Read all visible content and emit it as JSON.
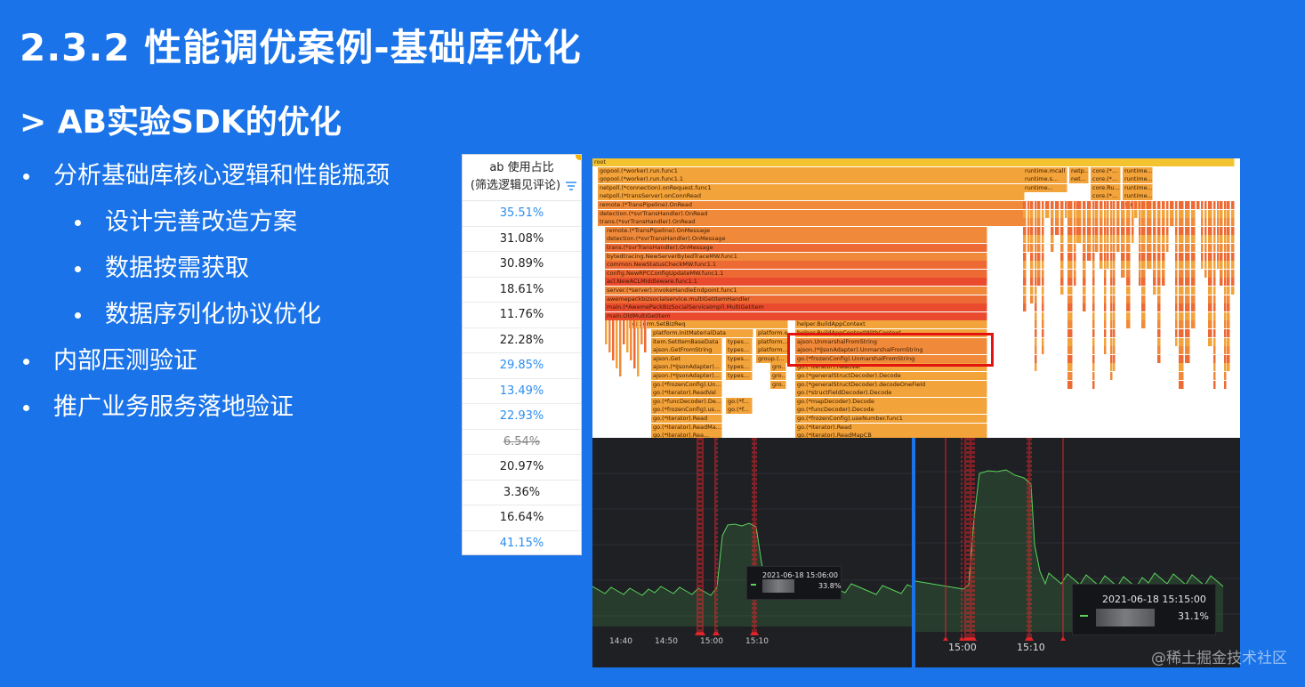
{
  "slide": {
    "title": "2.3.2 性能调优案例-基础库优化",
    "subtitle": "> AB实验SDK的优化",
    "bullets": [
      {
        "level": 1,
        "text": "分析基础库核心逻辑和性能瓶颈"
      },
      {
        "level": 2,
        "text": "设计完善改造方案"
      },
      {
        "level": 2,
        "text": "数据按需获取"
      },
      {
        "level": 2,
        "text": "数据序列化协议优化"
      },
      {
        "level": 1,
        "text": "内部压测验证"
      },
      {
        "level": 1,
        "text": "推广业务服务落地验证"
      }
    ]
  },
  "ab_table": {
    "header_line1": "ab 使用占比",
    "header_line2": "(筛选逻辑见评论)",
    "rows": [
      {
        "value": "35.51%",
        "style": "blue"
      },
      {
        "value": "31.08%",
        "style": "normal"
      },
      {
        "value": "30.89%",
        "style": "normal"
      },
      {
        "value": "18.61%",
        "style": "normal"
      },
      {
        "value": "11.76%",
        "style": "normal"
      },
      {
        "value": "22.28%",
        "style": "normal"
      },
      {
        "value": "29.85%",
        "style": "blue"
      },
      {
        "value": "13.49%",
        "style": "blue"
      },
      {
        "value": "22.93%",
        "style": "blue"
      },
      {
        "value": "6.54%",
        "style": "strike"
      },
      {
        "value": "20.97%",
        "style": "normal"
      },
      {
        "value": "3.36%",
        "style": "normal"
      },
      {
        "value": "16.64%",
        "style": "normal"
      },
      {
        "value": "41.15%",
        "style": "blue"
      }
    ]
  },
  "flame_graph": {
    "frames": [
      "root",
      "gopool.(*worker).run.func1",
      "gopool.(*worker).run.func1.1",
      "netpoll.(*connection).onRequest.func1",
      "netpoll.(*transServer).onConnRead",
      "remote.(*TransPipeline).OnRead",
      "detection.(*svrTransHandler).OnRead",
      "trans.(*svrTransHandler).OnRead",
      "remote.(*TransPipeline).OnMessage",
      "detection.(*svrTransHandler).OnMessage",
      "trans.(*svrTransHandler).OnMessage",
      "bytedtracing.NewServerBytedTraceMW.func1",
      "common.NewStatusCheckMW.func1.1",
      "config.NewRPCConfigUpdateMW.func1.1",
      "acl.NewACLMiddleware.func1.1",
      "server.(*server).invokeHandleEndpoint.func1",
      "awemepackbizsocialservice.multiGetItemHandler",
      "main.(*AwemePackBizSocialServiceImpl).MultiGetItem",
      "main.OldMultiGetItem",
      "platform.SetBizReq",
      "platform.InitMaterialData",
      "item.SetItemBaseData",
      "ajson.GetFromString",
      "ajson.Get",
      "ajson.(*IJsonAdapter)...",
      "ajson.(*IJsonAdapter)...",
      "go.(*frozenConfig).Un...",
      "go.(*Iterator).ReadVal",
      "go.(*funcDecoder).De...",
      "go.(*frozenConfig).us...",
      "go.(*Iterator).Read",
      "go.(*Iterator).ReadMa...",
      "go.(*Iterator).Rea...",
      "helper.BuildAppContext",
      "helper.BuildAppContextWithContext",
      "ajson.UnmarshalFromString",
      "ajson.(*IJsonAdapter).UnmarshalFromString",
      "go.(*frozenConfig).UnmarshalFromString",
      "go.(*Iterator).ReadVal",
      "go.(*generalStructDecoder).Decode",
      "go.(*generalStructDecoder).decodeOneField",
      "go.(*structFieldDecoder).Decode",
      "go.(*mapDecoder).Decode",
      "go.(*funcDecoder).Decode",
      "go.(*frozenConfig).useNumber.func1",
      "go.(*Iterator).Read",
      "go.(*Iterator).ReadMapCB",
      "runtime.mcall",
      "runtime.s...",
      "runtime...",
      "netp...",
      "net...",
      "core.(*...",
      "core.Ru...",
      "core.(*...",
      "runtime...",
      "runti...",
      "types...",
      "platform...",
      "group.(...",
      "gro...",
      "go.(*f...",
      "platform.o..."
    ]
  },
  "monitor_left": {
    "x_ticks": [
      "14:40",
      "14:50",
      "15:00",
      "15:10"
    ],
    "tooltip_date": "2021-06-18 15:06:00",
    "tooltip_value": "33.8%",
    "series_color": "#5bd35b",
    "event_line_color": "#e0242a"
  },
  "monitor_right": {
    "x_ticks": [
      "15:00",
      "15:10"
    ],
    "tooltip_date": "2021-06-18 15:15:00",
    "tooltip_value": "31.1%",
    "series_color": "#5bd35b",
    "event_line_color": "#e0242a"
  },
  "watermark": "@稀土掘金技术社区"
}
